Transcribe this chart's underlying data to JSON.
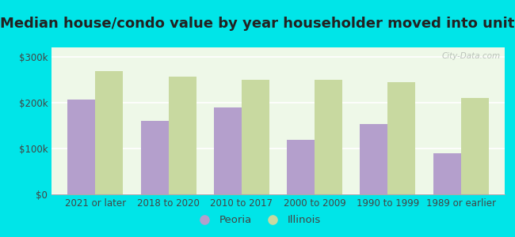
{
  "title": "Median house/condo value by year householder moved into unit",
  "categories": [
    "2021 or later",
    "2018 to 2020",
    "2010 to 2017",
    "2000 to 2009",
    "1990 to 1999",
    "1989 or earlier"
  ],
  "peoria_values": [
    207000,
    160000,
    190000,
    118000,
    153000,
    90000
  ],
  "illinois_values": [
    268000,
    257000,
    250000,
    249000,
    244000,
    210000
  ],
  "peoria_color": "#b49fcc",
  "illinois_color": "#c8d9a0",
  "background_outer": "#00e5e8",
  "background_inner": "#eef8e8",
  "yticks": [
    0,
    100000,
    200000,
    300000
  ],
  "ytick_labels": [
    "$0",
    "$100k",
    "$200k",
    "$300k"
  ],
  "ylim": [
    0,
    320000
  ],
  "bar_width": 0.38,
  "legend_peoria": "Peoria",
  "legend_illinois": "Illinois",
  "watermark": "City-Data.com",
  "title_fontsize": 13,
  "tick_fontsize": 8.5,
  "legend_fontsize": 9.5,
  "grid_color": "#ffffff",
  "title_color": "#222222"
}
